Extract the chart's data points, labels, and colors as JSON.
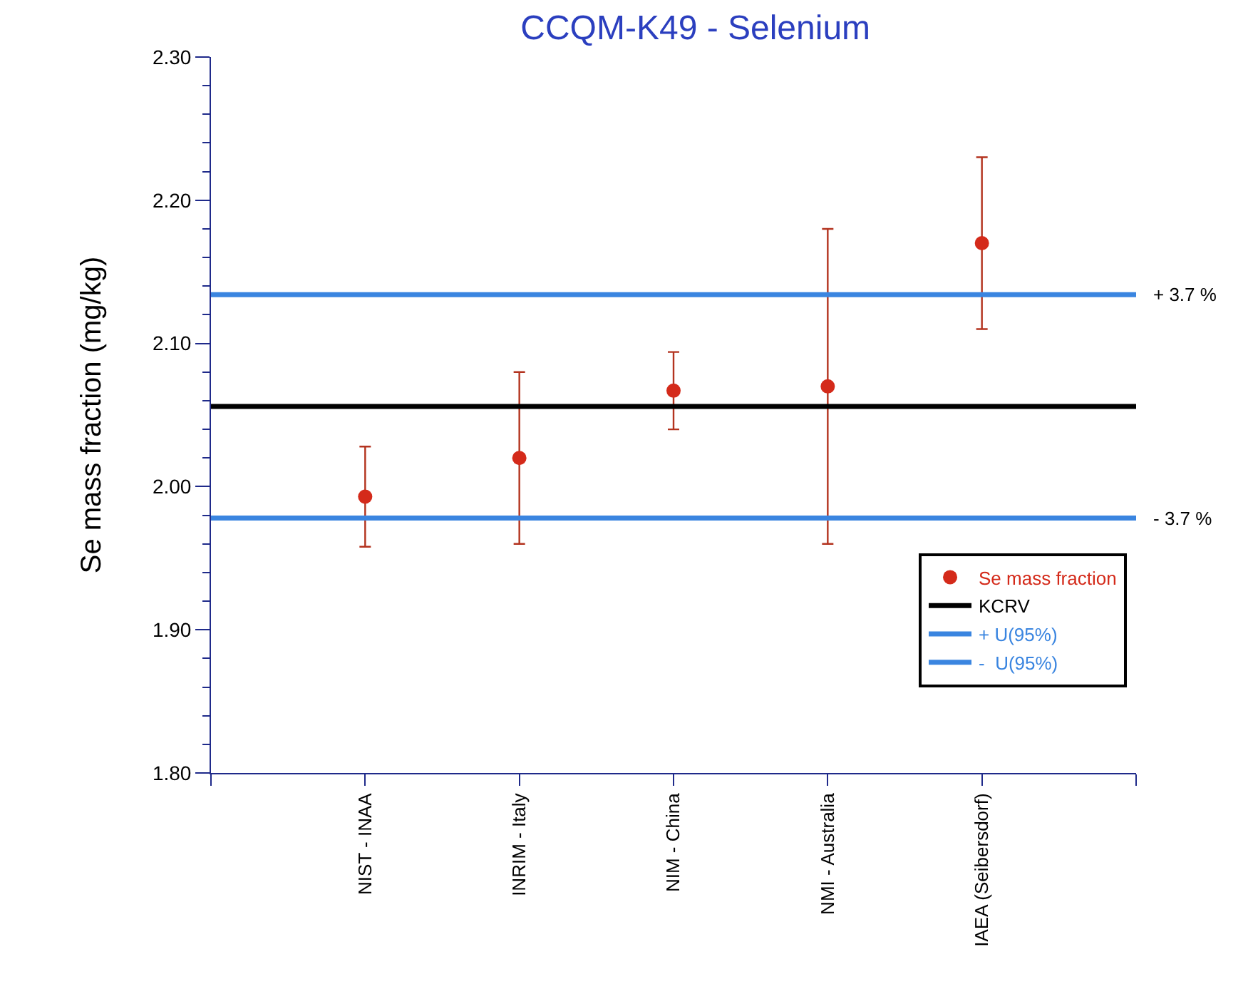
{
  "chart_data": {
    "type": "scatter",
    "title": "CCQM-K49 - Selenium",
    "ylabel": "Se mass fraction (mg/kg)",
    "categories": [
      null,
      "NIST - INAA",
      "INRIM - Italy",
      "NIM - China",
      "NMI - Australia",
      "IAEA (Seibersdorf)",
      null
    ],
    "series": [
      {
        "name": "Se mass fraction",
        "marker": "circle",
        "color": "#d42a1a",
        "values": [
          null,
          1.993,
          2.02,
          2.067,
          2.07,
          2.17,
          null
        ],
        "errors": [
          null,
          [
            1.958,
            2.028
          ],
          [
            1.96,
            2.08
          ],
          [
            2.04,
            2.094
          ],
          [
            1.96,
            2.18
          ],
          [
            2.11,
            2.23
          ],
          null
        ]
      },
      {
        "name": "KCRV",
        "type": "line",
        "color": "#000000",
        "values": [
          2.056,
          2.056,
          2.056,
          2.056,
          2.056,
          2.056,
          2.056
        ]
      },
      {
        "name": "+ U(95%)",
        "type": "line",
        "color": "#3a85e0",
        "values": [
          2.134,
          2.134,
          2.134,
          2.134,
          2.134,
          2.134,
          2.134
        ]
      },
      {
        "name": "-  U(95%)",
        "type": "line",
        "color": "#3a85e0",
        "values": [
          1.978,
          1.978,
          1.978,
          1.978,
          1.978,
          1.978,
          1.978
        ]
      }
    ],
    "annotations": [
      "+ 3.7 %",
      "- 3.7 %"
    ],
    "ylim": [
      1.8,
      2.3
    ],
    "yticks": [
      {
        "value": 1.8,
        "label": "1.80"
      },
      {
        "value": 1.82,
        "label": null
      },
      {
        "value": 1.84,
        "label": null
      },
      {
        "value": 1.86,
        "label": null
      },
      {
        "value": 1.88,
        "label": null
      },
      {
        "value": 1.9,
        "label": "1.90"
      },
      {
        "value": 1.92,
        "label": null
      },
      {
        "value": 1.94,
        "label": null
      },
      {
        "value": 1.96,
        "label": null
      },
      {
        "value": 1.98,
        "label": null
      },
      {
        "value": 2.0,
        "label": "2.00"
      },
      {
        "value": 2.02,
        "label": null
      },
      {
        "value": 2.04,
        "label": null
      },
      {
        "value": 2.06,
        "label": null
      },
      {
        "value": 2.08,
        "label": null
      },
      {
        "value": 2.1,
        "label": "2.10"
      },
      {
        "value": 2.12,
        "label": null
      },
      {
        "value": 2.14,
        "label": null
      },
      {
        "value": 2.16,
        "label": null
      },
      {
        "value": 2.18,
        "label": null
      },
      {
        "value": 2.2,
        "label": "2.20"
      },
      {
        "value": 2.22,
        "label": null
      },
      {
        "value": 2.24,
        "label": null
      },
      {
        "value": 2.26,
        "label": null
      },
      {
        "value": 2.28,
        "label": null
      },
      {
        "value": 2.3,
        "label": "2.30"
      }
    ],
    "line_style": "solid",
    "legend": "bottom right"
  }
}
